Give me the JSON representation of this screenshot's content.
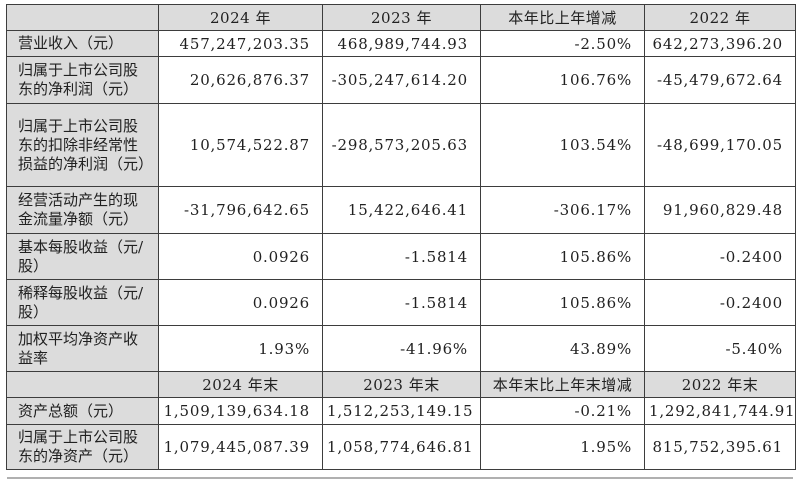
{
  "colors": {
    "header_bg": "#dcdcdc",
    "label_bg": "#dcdcdc",
    "border": "#3d3d3d",
    "text": "#212121"
  },
  "table": {
    "sections": [
      {
        "headers": [
          "",
          "2024 年",
          "2023 年",
          "本年比上年增减",
          "2022 年"
        ],
        "rows": [
          {
            "label": "营业收入（元）",
            "values": [
              "457,247,203.35",
              "468,989,744.93",
              "-2.50%",
              "642,273,396.20"
            ]
          },
          {
            "label": "归属于上市公司股东的净利润（元）",
            "values": [
              "20,626,876.37",
              "-305,247,614.20",
              "106.76%",
              "-45,479,672.64"
            ]
          },
          {
            "label": "归属于上市公司股东的扣除非经常性损益的净利润（元）",
            "values": [
              "10,574,522.87",
              "-298,573,205.63",
              "103.54%",
              "-48,699,170.05"
            ]
          },
          {
            "label": "经营活动产生的现金流量净额（元）",
            "values": [
              "-31,796,642.65",
              "15,422,646.41",
              "-306.17%",
              "91,960,829.48"
            ]
          },
          {
            "label": "基本每股收益（元/股）",
            "values": [
              "0.0926",
              "-1.5814",
              "105.86%",
              "-0.2400"
            ]
          },
          {
            "label": "稀释每股收益（元/股）",
            "values": [
              "0.0926",
              "-1.5814",
              "105.86%",
              "-0.2400"
            ]
          },
          {
            "label": "加权平均净资产收益率",
            "values": [
              "1.93%",
              "-41.96%",
              "43.89%",
              "-5.40%"
            ]
          }
        ]
      },
      {
        "headers": [
          "",
          "2024 年末",
          "2023 年末",
          "本年末比上年末增减",
          "2022 年末"
        ],
        "rows": [
          {
            "label": "资产总额（元）",
            "values": [
              "1,509,139,634.18",
              "1,512,253,149.15",
              "-0.21%",
              "1,292,841,744.91"
            ]
          },
          {
            "label": "归属于上市公司股东的净资产（元）",
            "values": [
              "1,079,445,087.39",
              "1,058,774,646.81",
              "1.95%",
              "815,752,395.61"
            ]
          }
        ]
      }
    ]
  }
}
